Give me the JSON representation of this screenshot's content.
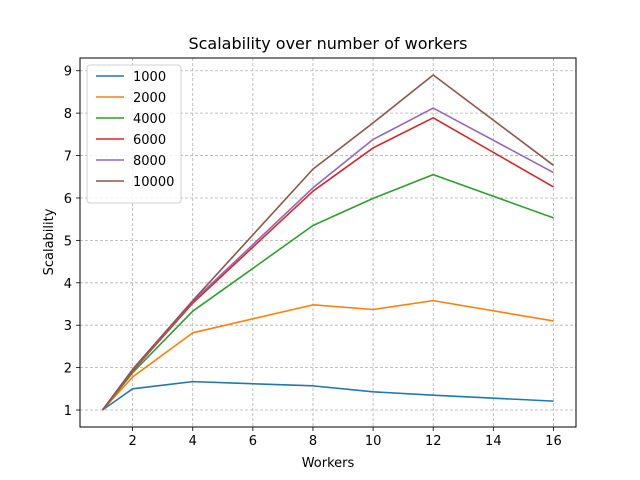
{
  "chart_data": {
    "type": "line",
    "title": "Scalability over number of workers",
    "xlabel": "Workers",
    "ylabel": "Scalability",
    "xlim": [
      0.25,
      16.75
    ],
    "ylim": [
      0.6,
      9.3
    ],
    "xticks": [
      2,
      4,
      6,
      8,
      10,
      12,
      14,
      16
    ],
    "yticks": [
      1,
      2,
      3,
      4,
      5,
      6,
      7,
      8,
      9
    ],
    "grid": true,
    "legend_position": "top-left",
    "x": [
      1,
      2,
      4,
      8,
      10,
      12,
      16
    ],
    "series": [
      {
        "name": "1000",
        "color": "#1f77b4",
        "values": [
          1,
          1.5,
          1.67,
          1.57,
          1.43,
          1.35,
          1.21
        ]
      },
      {
        "name": "2000",
        "color": "#ff7f0e",
        "values": [
          1,
          1.78,
          2.82,
          3.48,
          3.37,
          3.58,
          3.1
        ]
      },
      {
        "name": "4000",
        "color": "#2ca02c",
        "values": [
          1,
          1.88,
          3.33,
          5.35,
          5.99,
          6.55,
          5.53
        ]
      },
      {
        "name": "6000",
        "color": "#d62728",
        "values": [
          1,
          1.92,
          3.52,
          6.16,
          7.18,
          7.89,
          6.26
        ]
      },
      {
        "name": "8000",
        "color": "#9467bd",
        "values": [
          1,
          1.94,
          3.56,
          6.24,
          7.38,
          8.12,
          6.6
        ]
      },
      {
        "name": "10000",
        "color": "#8c564b",
        "values": [
          1,
          1.96,
          3.58,
          6.68,
          7.77,
          8.9,
          6.77
        ]
      }
    ]
  }
}
